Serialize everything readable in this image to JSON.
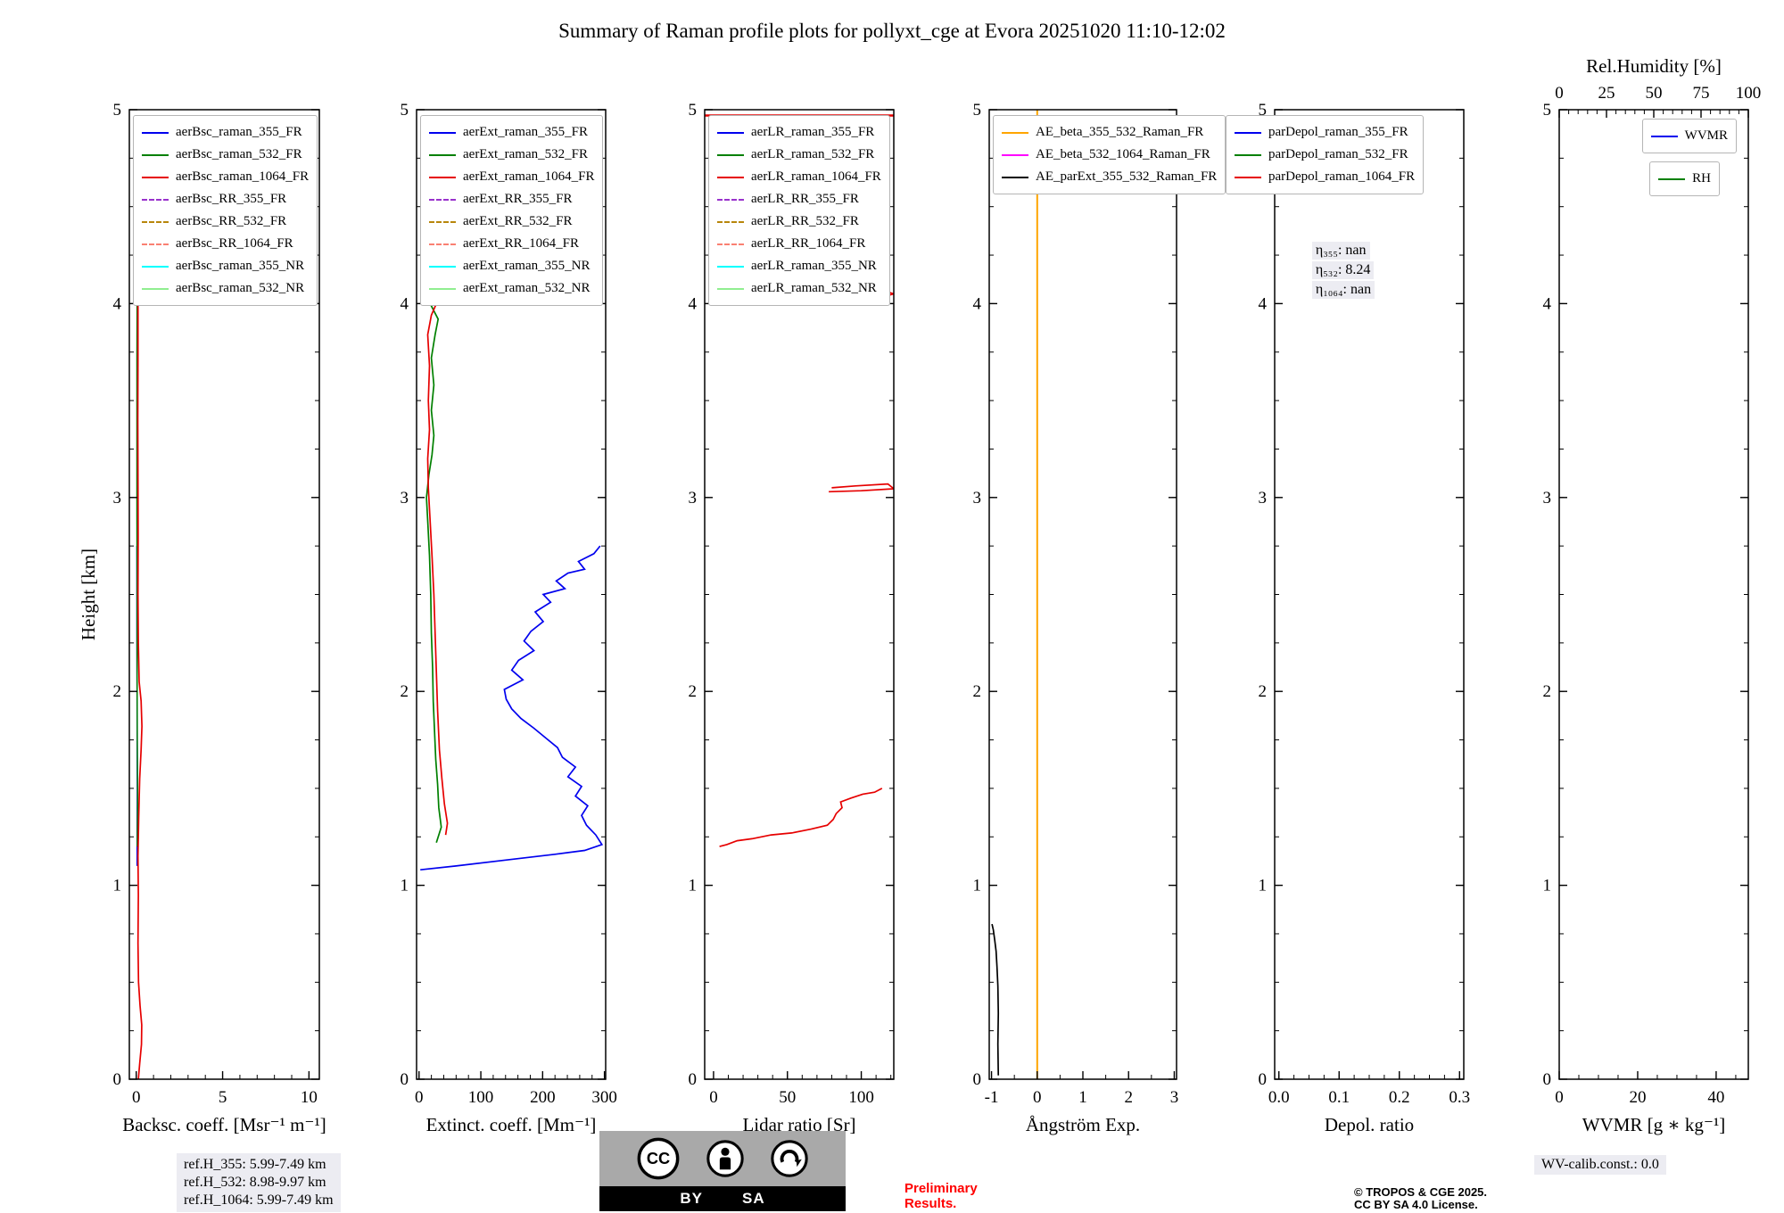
{
  "title": "Summary of Raman profile plots for pollyxt_cge at Evora 20251020 11:10-12:02",
  "y_axis": {
    "label": "Height [km]",
    "range": [
      0,
      5
    ],
    "ticks": [
      0,
      1,
      2,
      3,
      4,
      5
    ],
    "tick_labels": [
      "0",
      "1",
      "2",
      "3",
      "4",
      "5"
    ],
    "minor_step": 0.25
  },
  "footer": {
    "ref_lines": [
      "ref.H_355: 5.99-7.49 km",
      "ref.H_532: 8.98-9.97 km",
      "ref.H_1064: 5.99-7.49 km"
    ],
    "preliminary": [
      "Preliminary",
      "Results."
    ],
    "copyright": [
      "© TROPOS & CGE 2025.",
      "CC BY SA 4.0 License."
    ],
    "wv_calib": "WV-calib.const.: 0.0",
    "cc_badge": {
      "labels": [
        "BY",
        "SA"
      ],
      "cc_text": "CC"
    }
  },
  "chart_data": [
    {
      "type": "line",
      "name": "backscatter",
      "xlabel": "Backsc. coeff. [Msr⁻¹ m⁻¹]",
      "x_range": [
        -0.4,
        10.6
      ],
      "x_ticks": [
        0,
        5,
        10
      ],
      "x_tick_labels": [
        "0",
        "5",
        "10"
      ],
      "x_minor_step": 1,
      "legend_loc": "upper-left",
      "legend": [
        {
          "label": "aerBsc_raman_355_FR",
          "color": "#0000ee",
          "dash": false
        },
        {
          "label": "aerBsc_raman_532_FR",
          "color": "#008000",
          "dash": false
        },
        {
          "label": "aerBsc_raman_1064_FR",
          "color": "#e60000",
          "dash": false
        },
        {
          "label": "aerBsc_RR_355_FR",
          "color": "#9932cc",
          "dash": true
        },
        {
          "label": "aerBsc_RR_532_FR",
          "color": "#b8860b",
          "dash": true
        },
        {
          "label": "aerBsc_RR_1064_FR",
          "color": "#fa8072",
          "dash": true
        },
        {
          "label": "aerBsc_raman_355_NR",
          "color": "#00ffff",
          "dash": false
        },
        {
          "label": "aerBsc_raman_532_NR",
          "color": "#90ee90",
          "dash": false
        }
      ],
      "series": [
        {
          "name": "aerBsc_raman_355_FR",
          "color": "#0000ee",
          "width": 1.5,
          "points": [
            [
              0.05,
              1.1
            ],
            [
              0.06,
              1.5
            ],
            [
              0.05,
              1.9
            ],
            [
              0.04,
              2.3
            ],
            [
              0.04,
              2.75
            ]
          ]
        },
        {
          "name": "aerBsc_raman_532_FR",
          "color": "#008000",
          "width": 1.5,
          "points": [
            [
              0.06,
              1.2
            ],
            [
              0.08,
              1.45
            ],
            [
              0.06,
              1.75
            ],
            [
              0.05,
              2.1
            ],
            [
              0.05,
              2.5
            ],
            [
              0.04,
              2.9
            ],
            [
              0.04,
              3.3
            ],
            [
              0.04,
              3.7
            ],
            [
              0.05,
              4.0
            ]
          ]
        },
        {
          "name": "aerBsc_raman_1064_FR",
          "color": "#e60000",
          "width": 1.7,
          "points": [
            [
              0.12,
              0
            ],
            [
              0.2,
              0.08
            ],
            [
              0.3,
              0.18
            ],
            [
              0.32,
              0.28
            ],
            [
              0.22,
              0.38
            ],
            [
              0.13,
              0.5
            ],
            [
              0.1,
              0.7
            ],
            [
              0.12,
              0.95
            ],
            [
              0.1,
              1.15
            ],
            [
              0.14,
              1.35
            ],
            [
              0.2,
              1.55
            ],
            [
              0.28,
              1.7
            ],
            [
              0.33,
              1.82
            ],
            [
              0.28,
              1.95
            ],
            [
              0.17,
              2.05
            ],
            [
              0.12,
              2.25
            ],
            [
              0.1,
              2.5
            ],
            [
              0.11,
              2.8
            ],
            [
              0.1,
              3.1
            ],
            [
              0.09,
              3.4
            ],
            [
              0.1,
              3.7
            ],
            [
              0.1,
              4.0
            ],
            [
              0.12,
              4.05
            ]
          ]
        }
      ],
      "annotations": []
    },
    {
      "type": "line",
      "name": "extinction",
      "xlabel": "Extinct. coeff. [Mm⁻¹]",
      "x_range": [
        -4,
        302
      ],
      "x_ticks": [
        0,
        100,
        200,
        300
      ],
      "x_tick_labels": [
        "0",
        "100",
        "200",
        "300"
      ],
      "x_minor_step": 20,
      "legend_loc": "upper-left",
      "legend": [
        {
          "label": "aerExt_raman_355_FR",
          "color": "#0000ee",
          "dash": false
        },
        {
          "label": "aerExt_raman_532_FR",
          "color": "#008000",
          "dash": false
        },
        {
          "label": "aerExt_raman_1064_FR",
          "color": "#e60000",
          "dash": false
        },
        {
          "label": "aerExt_RR_355_FR",
          "color": "#9932cc",
          "dash": true
        },
        {
          "label": "aerExt_RR_532_FR",
          "color": "#b8860b",
          "dash": true
        },
        {
          "label": "aerExt_RR_1064_FR",
          "color": "#fa8072",
          "dash": true
        },
        {
          "label": "aerExt_raman_355_NR",
          "color": "#00ffff",
          "dash": false
        },
        {
          "label": "aerExt_raman_532_NR",
          "color": "#90ee90",
          "dash": false
        }
      ],
      "series": [
        {
          "name": "aerExt_raman_355_FR",
          "color": "#0000ee",
          "width": 1.7,
          "points": [
            [
              2,
              1.08
            ],
            [
              60,
              1.1
            ],
            [
              140,
              1.13
            ],
            [
              220,
              1.16
            ],
            [
              268,
              1.18
            ],
            [
              296,
              1.21
            ],
            [
              286,
              1.26
            ],
            [
              271,
              1.31
            ],
            [
              263,
              1.36
            ],
            [
              273,
              1.41
            ],
            [
              253,
              1.46
            ],
            [
              263,
              1.51
            ],
            [
              241,
              1.56
            ],
            [
              253,
              1.61
            ],
            [
              232,
              1.66
            ],
            [
              224,
              1.71
            ],
            [
              205,
              1.76
            ],
            [
              186,
              1.81
            ],
            [
              165,
              1.86
            ],
            [
              150,
              1.91
            ],
            [
              141,
              1.96
            ],
            [
              138,
              2.01
            ],
            [
              168,
              2.06
            ],
            [
              150,
              2.11
            ],
            [
              161,
              2.16
            ],
            [
              186,
              2.21
            ],
            [
              170,
              2.26
            ],
            [
              181,
              2.31
            ],
            [
              201,
              2.36
            ],
            [
              188,
              2.41
            ],
            [
              213,
              2.46
            ],
            [
              201,
              2.5
            ],
            [
              236,
              2.53
            ],
            [
              222,
              2.57
            ],
            [
              241,
              2.61
            ],
            [
              268,
              2.63
            ],
            [
              258,
              2.67
            ],
            [
              283,
              2.71
            ],
            [
              293,
              2.75
            ]
          ]
        },
        {
          "name": "aerExt_raman_532_FR",
          "color": "#008000",
          "width": 1.7,
          "points": [
            [
              28,
              1.22
            ],
            [
              36,
              1.3
            ],
            [
              32,
              1.4
            ],
            [
              30,
              1.52
            ],
            [
              27,
              1.65
            ],
            [
              25,
              1.8
            ],
            [
              23,
              1.95
            ],
            [
              22,
              2.12
            ],
            [
              20,
              2.3
            ],
            [
              19,
              2.5
            ],
            [
              17,
              2.7
            ],
            [
              14,
              2.88
            ],
            [
              12,
              3.0
            ],
            [
              16,
              3.12
            ],
            [
              21,
              3.22
            ],
            [
              24,
              3.32
            ],
            [
              20,
              3.45
            ],
            [
              24,
              3.58
            ],
            [
              20,
              3.72
            ],
            [
              26,
              3.84
            ],
            [
              31,
              3.92
            ],
            [
              18,
              4.0
            ]
          ]
        },
        {
          "name": "aerExt_raman_1064_FR",
          "color": "#e60000",
          "width": 1.7,
          "points": [
            [
              43,
              1.26
            ],
            [
              46,
              1.32
            ],
            [
              41,
              1.42
            ],
            [
              37,
              1.55
            ],
            [
              33,
              1.7
            ],
            [
              30,
              1.9
            ],
            [
              28,
              2.1
            ],
            [
              26,
              2.3
            ],
            [
              24,
              2.5
            ],
            [
              21,
              2.7
            ],
            [
              18,
              2.88
            ],
            [
              15,
              3.05
            ],
            [
              14,
              3.2
            ],
            [
              17,
              3.35
            ],
            [
              15,
              3.5
            ],
            [
              17,
              3.68
            ],
            [
              14,
              3.84
            ],
            [
              20,
              3.94
            ],
            [
              28,
              4.0
            ],
            [
              12,
              4.05
            ]
          ]
        }
      ],
      "annotations": []
    },
    {
      "type": "line",
      "name": "lidar-ratio",
      "xlabel": "Lidar ratio [Sr]",
      "x_range": [
        -6,
        122
      ],
      "x_ticks": [
        0,
        50,
        100
      ],
      "x_tick_labels": [
        "0",
        "50",
        "100"
      ],
      "x_minor_step": 10,
      "legend_loc": "upper-left",
      "legend": [
        {
          "label": "aerLR_raman_355_FR",
          "color": "#0000ee",
          "dash": false
        },
        {
          "label": "aerLR_raman_532_FR",
          "color": "#008000",
          "dash": false
        },
        {
          "label": "aerLR_raman_1064_FR",
          "color": "#e60000",
          "dash": false
        },
        {
          "label": "aerLR_RR_355_FR",
          "color": "#9932cc",
          "dash": true
        },
        {
          "label": "aerLR_RR_532_FR",
          "color": "#b8860b",
          "dash": true
        },
        {
          "label": "aerLR_RR_1064_FR",
          "color": "#fa8072",
          "dash": true
        },
        {
          "label": "aerLR_raman_355_NR",
          "color": "#00ffff",
          "dash": false
        },
        {
          "label": "aerLR_raman_532_NR",
          "color": "#90ee90",
          "dash": false
        }
      ],
      "series": [
        {
          "name": "aerLR_raman_1064_FR",
          "color": "#e60000",
          "width": 1.7,
          "points": [
            [
              4,
              1.2
            ],
            [
              9,
              1.21
            ],
            [
              16,
              1.23
            ],
            [
              26,
              1.24
            ],
            [
              39,
              1.26
            ],
            [
              53,
              1.27
            ],
            [
              66,
              1.29
            ],
            [
              77,
              1.31
            ],
            [
              81,
              1.34
            ],
            [
              83,
              1.37
            ],
            [
              87,
              1.4
            ],
            [
              86,
              1.43
            ],
            [
              93,
              1.45
            ],
            [
              101,
              1.47
            ],
            [
              109,
              1.48
            ],
            [
              114,
              1.5
            ]
          ]
        },
        {
          "name": "aerLR_raman_1064_FR",
          "color": "#e60000",
          "width": 1.7,
          "points": [
            [
              78,
              3.03
            ],
            [
              100,
              3.035
            ],
            [
              122,
              3.045
            ],
            [
              118,
              3.07
            ],
            [
              96,
              3.06
            ],
            [
              80,
              3.05
            ]
          ]
        },
        {
          "name": "aerLR_raman_1064_FR",
          "color": "#e60000",
          "width": 1.7,
          "points": [
            [
              112,
              4.03
            ],
            [
              122,
              4.05
            ],
            [
              114,
              4.07
            ]
          ]
        },
        {
          "name": "aerLR_raman_1064_FR",
          "color": "#e60000",
          "width": 2.6,
          "points": [
            [
              -6,
              4.97
            ],
            [
              122,
              4.97
            ]
          ]
        }
      ],
      "annotations": []
    },
    {
      "type": "line",
      "name": "angstrom-exponent",
      "xlabel": "Ångström Exp.",
      "x_range": [
        -1.05,
        3.05
      ],
      "x_ticks": [
        -1,
        0,
        1,
        2,
        3
      ],
      "x_tick_labels": [
        "-1",
        "0",
        "1",
        "2",
        "3"
      ],
      "x_minor_step": 0.5,
      "legend_loc": "upper-left",
      "legend": [
        {
          "label": "AE_beta_355_532_Raman_FR",
          "color": "#ffa500",
          "dash": false
        },
        {
          "label": "AE_beta_532_1064_Raman_FR",
          "color": "#ff00ff",
          "dash": false
        },
        {
          "label": "AE_parExt_355_532_Raman_FR",
          "color": "#000000",
          "dash": false
        }
      ],
      "series": [
        {
          "name": "AE_beta_355_532_Raman_FR",
          "color": "#ffa500",
          "width": 2.0,
          "points": [
            [
              0,
              0
            ],
            [
              0,
              5
            ]
          ]
        },
        {
          "name": "AE_parExt_355_532_Raman_FR",
          "color": "#000000",
          "width": 1.7,
          "points": [
            [
              -0.85,
              0.02
            ],
            [
              -0.86,
              0.18
            ],
            [
              -0.85,
              0.34
            ],
            [
              -0.86,
              0.48
            ],
            [
              -0.88,
              0.58
            ],
            [
              -0.9,
              0.66
            ],
            [
              -0.93,
              0.72
            ],
            [
              -0.96,
              0.77
            ],
            [
              -0.99,
              0.8
            ]
          ]
        }
      ],
      "annotations": []
    },
    {
      "type": "line",
      "name": "depolarization",
      "xlabel": "Depol. ratio",
      "x_range": [
        -0.007,
        0.307
      ],
      "x_ticks": [
        0,
        0.1,
        0.2,
        0.3
      ],
      "x_tick_labels": [
        "0.0",
        "0.1",
        "0.2",
        "0.3"
      ],
      "x_minor_step": 0.025,
      "legend_loc": "upper-left-shift",
      "legend": [
        {
          "label": "parDepol_raman_355_FR",
          "color": "#0000ee",
          "dash": false
        },
        {
          "label": "parDepol_raman_532_FR",
          "color": "#008000",
          "dash": false
        },
        {
          "label": "parDepol_raman_1064_FR",
          "color": "#e60000",
          "dash": false
        }
      ],
      "series": [],
      "annotations": [
        {
          "x": 0.055,
          "y": 4.32,
          "lines": [
            "η₃₅₅: nan",
            "η₅₃₂: 8.24",
            "η₁₀₆₄: nan"
          ]
        }
      ]
    },
    {
      "type": "line",
      "name": "water-vapor",
      "xlabel": "WVMR [g ∗ kg⁻¹]",
      "x_range": [
        0,
        48.2
      ],
      "x_ticks": [
        0,
        20,
        40
      ],
      "x_tick_labels": [
        "0",
        "20",
        "40"
      ],
      "x_minor_step": 5,
      "legend_loc": "right-stack",
      "top_axis": {
        "label": "Rel.Humidity [%]",
        "range": [
          0,
          100
        ],
        "ticks": [
          0,
          25,
          50,
          75,
          100
        ],
        "tick_labels": [
          "0",
          "25",
          "50",
          "75",
          "100"
        ],
        "minor_step": 5
      },
      "legend": [
        {
          "label": "WVMR",
          "color": "#0000ee",
          "dash": false
        },
        {
          "label": "RH",
          "color": "#008000",
          "dash": false
        }
      ],
      "series": [],
      "annotations": []
    }
  ]
}
